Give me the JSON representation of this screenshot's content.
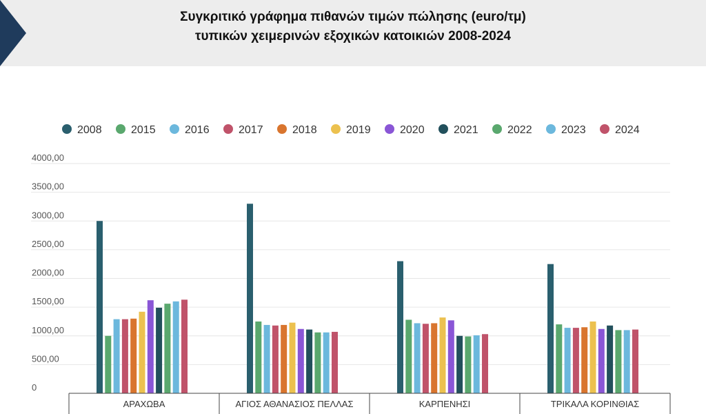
{
  "header": {
    "title_line1": "Συγκριτικό γράφημα πιθανών τιμών πώλησης (euro/τμ)",
    "title_line2": "τυπικών χειμερινών εξοχικών κατοικιών 2008-2024",
    "accent_color": "#1f3b5c",
    "band_color": "#ededed"
  },
  "chart_data": {
    "type": "bar",
    "title": "Συγκριτικό γράφημα πιθανών τιμών πώλησης (euro/τμ) τυπικών χειμερινών εξοχικών κατοικιών 2008-2024",
    "xlabel": "",
    "ylabel": "",
    "ylim": [
      0,
      4000
    ],
    "yticks": [
      "0",
      "500,00",
      "1000,00",
      "1500,00",
      "2000,00",
      "2500,00",
      "3000,00",
      "3500,00",
      "4000,00"
    ],
    "ytick_values": [
      0,
      500,
      1000,
      1500,
      2000,
      2500,
      3000,
      3500,
      4000
    ],
    "grid": true,
    "legend_position": "top",
    "categories": [
      "ΑΡΑΧΩΒΑ",
      "ΑΓΙΟΣ ΑΘΑΝΑΣΙΟΣ ΠΕΛΛΑΣ",
      "ΚΑΡΠΕΝΗΣΙ",
      "ΤΡΙΚΑΛΑ ΚΟΡΙΝΘΙΑΣ"
    ],
    "series": [
      {
        "name": "2008",
        "color": "#2a5f6e",
        "values": [
          3000,
          3300,
          2300,
          2250
        ]
      },
      {
        "name": "2015",
        "color": "#5aa86e",
        "values": [
          1000,
          1250,
          1280,
          1200
        ]
      },
      {
        "name": "2016",
        "color": "#6cb8dd",
        "values": [
          1290,
          1190,
          1220,
          1140
        ]
      },
      {
        "name": "2017",
        "color": "#c0536a",
        "values": [
          1290,
          1180,
          1210,
          1140
        ]
      },
      {
        "name": "2018",
        "color": "#d9752e",
        "values": [
          1300,
          1190,
          1220,
          1150
        ]
      },
      {
        "name": "2019",
        "color": "#ecc14f",
        "values": [
          1420,
          1230,
          1320,
          1250
        ]
      },
      {
        "name": "2020",
        "color": "#8a56d6",
        "values": [
          1620,
          1120,
          1270,
          1120
        ]
      },
      {
        "name": "2021",
        "color": "#22505c",
        "values": [
          1490,
          1110,
          1000,
          1180
        ]
      },
      {
        "name": "2022",
        "color": "#5aa86e",
        "values": [
          1560,
          1060,
          990,
          1100
        ]
      },
      {
        "name": "2023",
        "color": "#6cb8dd",
        "values": [
          1600,
          1060,
          1010,
          1100
        ]
      },
      {
        "name": "2024",
        "color": "#c0536a",
        "values": [
          1630,
          1070,
          1030,
          1110
        ]
      }
    ]
  }
}
